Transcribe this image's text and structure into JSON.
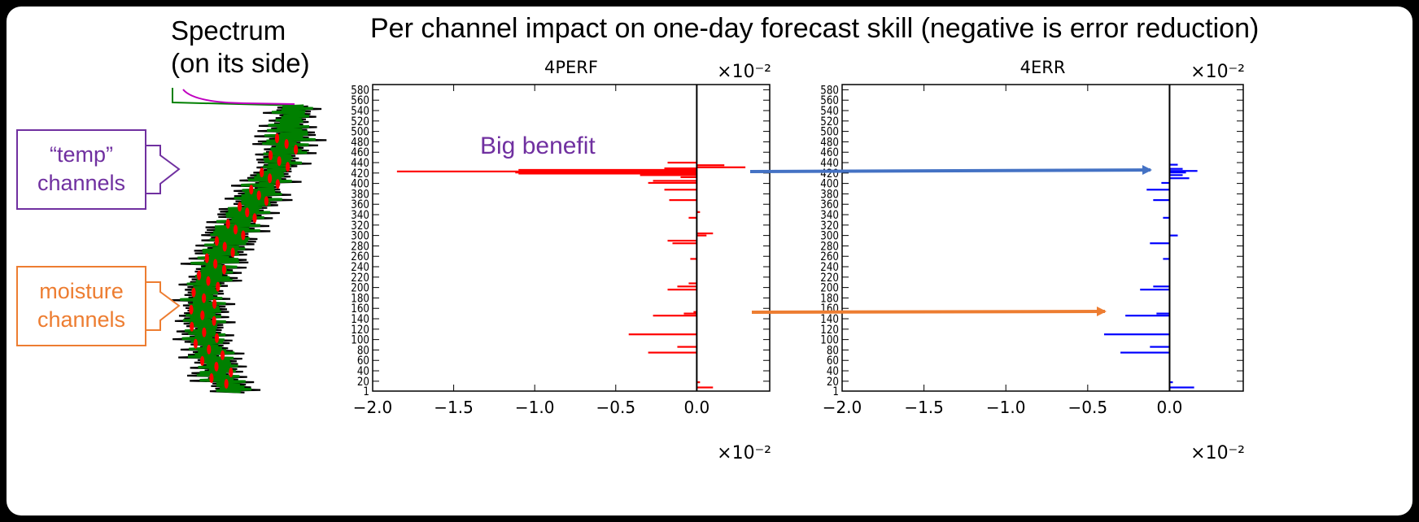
{
  "slide": {
    "main_title": "Per channel impact on one-day forecast skill (negative is error reduction)",
    "spectrum_title_line1": "Spectrum",
    "spectrum_title_line2": "(on its side)",
    "callouts": {
      "temp_line1": "“temp”",
      "temp_line2": "channels",
      "moisture_line1": "moisture",
      "moisture_line2": "channels"
    },
    "annotation": "Big benefit",
    "colors": {
      "temp": "#7030a0",
      "moisture": "#ed7d31",
      "arrow_blue": "#4472c4",
      "arrow_orange": "#ed7d31",
      "spectrum_green": "#008000",
      "spectrum_red": "#ff0000",
      "spectrum_magenta": "#c000c0"
    }
  },
  "chart_data": [
    {
      "type": "bar",
      "orientation": "horizontal",
      "title": "4PERF",
      "color": "#ff0000",
      "scale_label_top": "×10⁻²",
      "scale_label_bottom": "×10⁻²",
      "xlim": [
        -2.0,
        0.45
      ],
      "ylim": [
        1,
        590
      ],
      "x_ticks": [
        "−2.0",
        "−1.5",
        "−1.0",
        "−0.5",
        "0.0"
      ],
      "x_tick_values": [
        -2.0,
        -1.5,
        -1.0,
        -0.5,
        0.0
      ],
      "y_ticks": [
        1,
        20,
        40,
        60,
        80,
        100,
        120,
        140,
        160,
        180,
        200,
        220,
        240,
        260,
        280,
        300,
        320,
        340,
        360,
        380,
        400,
        420,
        440,
        460,
        480,
        500,
        520,
        540,
        560,
        580
      ],
      "bars": [
        {
          "channel": 8,
          "value": 0.1
        },
        {
          "channel": 18,
          "value": 0.02
        },
        {
          "channel": 75,
          "value": -0.3
        },
        {
          "channel": 86,
          "value": -0.12
        },
        {
          "channel": 110,
          "value": -0.42
        },
        {
          "channel": 146,
          "value": -0.27
        },
        {
          "channel": 150,
          "value": -0.08
        },
        {
          "channel": 153,
          "value": -0.02
        },
        {
          "channel": 196,
          "value": -0.18
        },
        {
          "channel": 202,
          "value": -0.12
        },
        {
          "channel": 208,
          "value": -0.05
        },
        {
          "channel": 255,
          "value": -0.04
        },
        {
          "channel": 285,
          "value": -0.15
        },
        {
          "channel": 290,
          "value": -0.18
        },
        {
          "channel": 300,
          "value": 0.06
        },
        {
          "channel": 304,
          "value": 0.1
        },
        {
          "channel": 334,
          "value": -0.05
        },
        {
          "channel": 345,
          "value": 0.02
        },
        {
          "channel": 368,
          "value": -0.17
        },
        {
          "channel": 388,
          "value": -0.2
        },
        {
          "channel": 401,
          "value": -0.3
        },
        {
          "channel": 405,
          "value": -0.27
        },
        {
          "channel": 412,
          "value": -0.1
        },
        {
          "channel": 416,
          "value": -0.35
        },
        {
          "channel": 419,
          "value": -1.1
        },
        {
          "channel": 421,
          "value": -1.12
        },
        {
          "channel": 423,
          "value": -1.85
        },
        {
          "channel": 426,
          "value": -1.1
        },
        {
          "channel": 429,
          "value": -0.2
        },
        {
          "channel": 431,
          "value": 0.3
        },
        {
          "channel": 435,
          "value": 0.17
        },
        {
          "channel": 440,
          "value": -0.18
        }
      ]
    },
    {
      "type": "bar",
      "orientation": "horizontal",
      "title": "4ERR",
      "color": "#0000ff",
      "scale_label_top": "×10⁻²",
      "scale_label_bottom": "×10⁻²",
      "xlim": [
        -2.0,
        0.45
      ],
      "ylim": [
        1,
        590
      ],
      "x_ticks": [
        "−2.0",
        "−1.5",
        "−1.0",
        "−0.5",
        "0.0"
      ],
      "x_tick_values": [
        -2.0,
        -1.5,
        -1.0,
        -0.5,
        0.0
      ],
      "y_ticks": [
        1,
        20,
        40,
        60,
        80,
        100,
        120,
        140,
        160,
        180,
        200,
        220,
        240,
        260,
        280,
        300,
        320,
        340,
        360,
        380,
        400,
        420,
        440,
        460,
        480,
        500,
        520,
        540,
        560,
        580
      ],
      "bars": [
        {
          "channel": 8,
          "value": 0.15
        },
        {
          "channel": 18,
          "value": 0.02
        },
        {
          "channel": 75,
          "value": -0.3
        },
        {
          "channel": 86,
          "value": -0.12
        },
        {
          "channel": 110,
          "value": -0.4
        },
        {
          "channel": 146,
          "value": -0.27
        },
        {
          "channel": 150,
          "value": -0.08
        },
        {
          "channel": 196,
          "value": -0.18
        },
        {
          "channel": 202,
          "value": -0.1
        },
        {
          "channel": 255,
          "value": -0.04
        },
        {
          "channel": 285,
          "value": -0.12
        },
        {
          "channel": 300,
          "value": 0.05
        },
        {
          "channel": 334,
          "value": -0.04
        },
        {
          "channel": 368,
          "value": -0.1
        },
        {
          "channel": 388,
          "value": -0.14
        },
        {
          "channel": 401,
          "value": -0.05
        },
        {
          "channel": 410,
          "value": 0.12
        },
        {
          "channel": 416,
          "value": 0.08
        },
        {
          "channel": 421,
          "value": 0.1
        },
        {
          "channel": 424,
          "value": 0.17
        },
        {
          "channel": 428,
          "value": 0.08
        },
        {
          "channel": 436,
          "value": 0.05
        }
      ]
    }
  ]
}
